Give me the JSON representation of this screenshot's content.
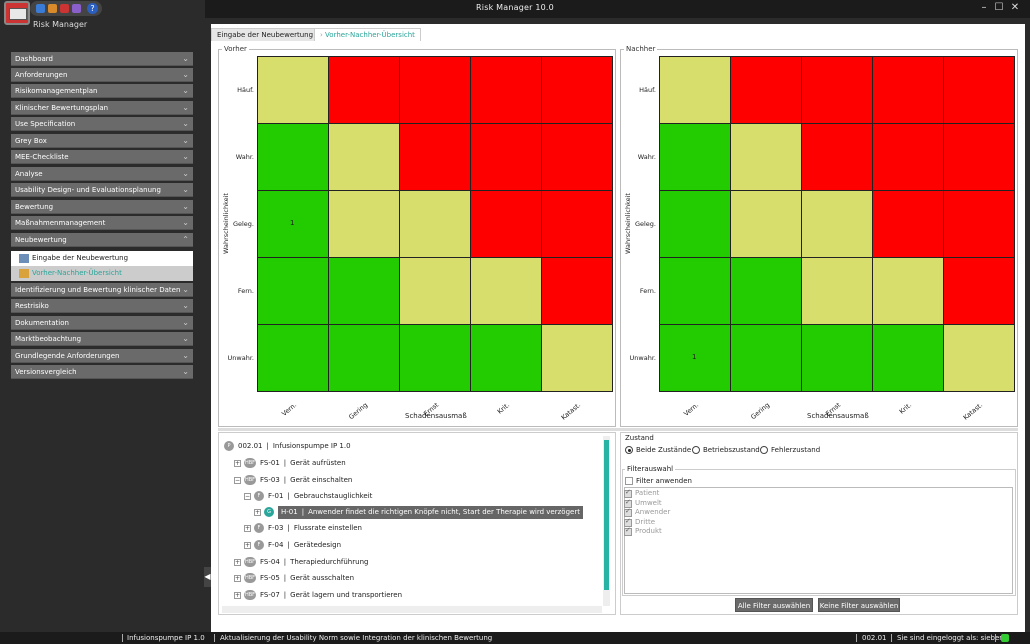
{
  "app": {
    "window_title": "Risk Manager  10.0",
    "app_name": "Risk Manager",
    "window_controls": [
      "minimize-icon",
      "maximize-icon",
      "close-icon"
    ]
  },
  "sidebar": {
    "items": [
      {
        "label": "Dashboard"
      },
      {
        "label": "Anforderungen"
      },
      {
        "label": "Risikomanagementplan"
      },
      {
        "label": "Klinischer Bewertungsplan"
      },
      {
        "label": "Use Specification"
      },
      {
        "label": "Grey Box"
      },
      {
        "label": "MEE-Checkliste"
      },
      {
        "label": "Analyse"
      },
      {
        "label": "Usability Design- und Evaluationsplanung"
      },
      {
        "label": "Bewertung"
      },
      {
        "label": "Maßnahmenmanagement"
      },
      {
        "label": "Neubewertung"
      },
      {
        "label": "Identifizierung und Bewertung klinischer Daten"
      },
      {
        "label": "Restrisiko"
      },
      {
        "label": "Dokumentation"
      },
      {
        "label": "Marktbeobachtung"
      },
      {
        "label": "Grundlegende Anforderungen"
      },
      {
        "label": "Versionsvergleich"
      }
    ],
    "subitems": [
      {
        "label": "Eingabe der Neubewertung"
      },
      {
        "label": "Vorher-Nachher-Übersicht"
      }
    ]
  },
  "tabs": [
    {
      "label": "Eingabe der Neubewertung"
    },
    {
      "label": "Vorher-Nachher-Übersicht"
    }
  ],
  "matrix": {
    "y_axis_title": "Wahrscheinlichkeit",
    "x_axis_title": "Schadensausmaß",
    "rows": [
      "Häuf.",
      "Wahr.",
      "Geleg.",
      "Fern.",
      "Unwahr."
    ],
    "cols": [
      "Vern.",
      "Gering",
      "Ernst",
      "Krit.",
      "Katast."
    ],
    "colors": {
      "R": "#ff0000",
      "Y": "#d8de6c",
      "G": "#22cc00"
    },
    "before": {
      "title": "Vorher",
      "grid": [
        [
          "Y",
          "R",
          "R",
          "R",
          "R"
        ],
        [
          "G",
          "Y",
          "R",
          "R",
          "R"
        ],
        [
          "G",
          "Y",
          "Y",
          "R",
          "R"
        ],
        [
          "G",
          "G",
          "Y",
          "Y",
          "R"
        ],
        [
          "G",
          "G",
          "G",
          "G",
          "Y"
        ]
      ],
      "counts": [
        [
          "",
          "",
          "",
          "",
          ""
        ],
        [
          "",
          "",
          "",
          "",
          ""
        ],
        [
          "1",
          "",
          "",
          "",
          ""
        ],
        [
          "",
          "",
          "",
          "",
          ""
        ],
        [
          "",
          "",
          "",
          "",
          ""
        ]
      ]
    },
    "after": {
      "title": "Nachher",
      "grid": [
        [
          "Y",
          "R",
          "R",
          "R",
          "R"
        ],
        [
          "G",
          "Y",
          "R",
          "R",
          "R"
        ],
        [
          "G",
          "Y",
          "Y",
          "R",
          "R"
        ],
        [
          "G",
          "G",
          "Y",
          "Y",
          "R"
        ],
        [
          "G",
          "G",
          "G",
          "G",
          "Y"
        ]
      ],
      "counts": [
        [
          "",
          "",
          "",
          "",
          ""
        ],
        [
          "",
          "",
          "",
          "",
          ""
        ],
        [
          "",
          "",
          "",
          "",
          ""
        ],
        [
          "",
          "",
          "",
          "",
          ""
        ],
        [
          "1",
          "",
          "",
          "",
          ""
        ]
      ]
    }
  },
  "tree": {
    "rows": [
      {
        "badge": "P",
        "code": "002.01",
        "text": "Infusionspumpe IP 1.0"
      },
      {
        "badge": "HBF",
        "code": "FS-01",
        "text": "Gerät aufrüsten",
        "exp": "+"
      },
      {
        "badge": "HBF",
        "code": "FS-03",
        "text": "Gerät einschalten",
        "exp": "−"
      },
      {
        "badge": "F",
        "code": "F-01",
        "text": "Gebrauchstauglichkeit",
        "exp": "−"
      },
      {
        "badge": "G",
        "code": "H-01",
        "text": "Anwender findet die richtigen Knöpfe nicht, Start der Therapie wird verzögert",
        "exp": "+"
      },
      {
        "badge": "F",
        "code": "F-03",
        "text": "Flussrate einstellen",
        "exp": "+"
      },
      {
        "badge": "F",
        "code": "F-04",
        "text": "Gerätedesign",
        "exp": "+"
      },
      {
        "badge": "HBF",
        "code": "FS-04",
        "text": "Therapiedurchführung",
        "exp": "+"
      },
      {
        "badge": "HBF",
        "code": "FS-05",
        "text": "Gerät ausschalten",
        "exp": "+"
      },
      {
        "badge": "HBF",
        "code": "FS-07",
        "text": "Gerät lagern und transportieren",
        "exp": "+"
      }
    ],
    "separator": "|"
  },
  "zustand": {
    "title": "Zustand",
    "options": [
      {
        "label": "Beide Zustände",
        "selected": true
      },
      {
        "label": "Betriebszustand",
        "selected": false
      },
      {
        "label": "Fehlerzustand",
        "selected": false
      }
    ]
  },
  "filter": {
    "title": "Filterauswahl",
    "apply_label": "Filter anwenden",
    "items": [
      "Patient",
      "Umwelt",
      "Anwender",
      "Dritte",
      "Produkt"
    ],
    "select_all": "Alle Filter auswählen",
    "select_none": "Keine Filter auswählen"
  },
  "status": {
    "project": "Infusionspumpe IP 1.0",
    "message": "Aktualisierung der Usability Norm sowie Integration der klinischen Bewertung",
    "version": "002.01",
    "user": "Sie sind eingeloggt als: sieber"
  }
}
